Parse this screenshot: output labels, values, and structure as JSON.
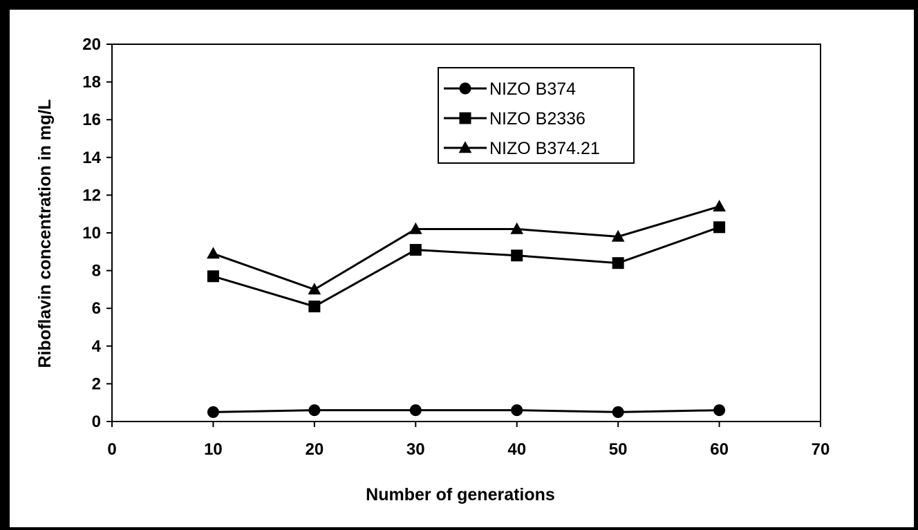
{
  "chart_data": {
    "type": "line",
    "title": "",
    "xlabel": "Number of generations",
    "ylabel": "Riboflavin concentration in mg/L",
    "xlim": [
      0,
      70
    ],
    "ylim": [
      0,
      20
    ],
    "xticks": [
      0,
      10,
      20,
      30,
      40,
      50,
      60,
      70
    ],
    "yticks": [
      0,
      2,
      4,
      6,
      8,
      10,
      12,
      14,
      16,
      18,
      20
    ],
    "x": [
      10,
      20,
      30,
      40,
      50,
      60
    ],
    "grid": false,
    "legend_position": "top-center",
    "series": [
      {
        "name": "NIZO B374",
        "marker": "circle",
        "values": [
          0.5,
          0.6,
          0.6,
          0.6,
          0.5,
          0.6
        ]
      },
      {
        "name": "NIZO B2336",
        "marker": "square",
        "values": [
          7.7,
          6.1,
          9.1,
          8.8,
          8.4,
          10.3
        ]
      },
      {
        "name": "NIZO B374.21",
        "marker": "triangle",
        "values": [
          8.9,
          7.0,
          10.2,
          10.2,
          9.8,
          11.4
        ]
      }
    ],
    "colors": {
      "line": "#000000",
      "background": "#ffffff",
      "frame": "#000000"
    }
  }
}
